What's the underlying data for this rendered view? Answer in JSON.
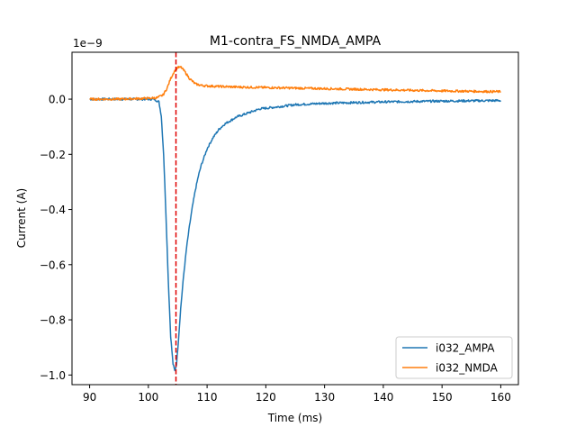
{
  "chart_data": {
    "type": "line",
    "title": "M1-contra_FS_NMDA_AMPA",
    "xlabel": "Time (ms)",
    "ylabel": "Current (A)",
    "y_offset_label": "1e−9",
    "xlim": [
      87,
      163
    ],
    "ylim": [
      -1.035,
      0.17
    ],
    "x_ticks": [
      90,
      100,
      110,
      120,
      130,
      140,
      150,
      160
    ],
    "x_tick_labels": [
      "90",
      "100",
      "110",
      "120",
      "130",
      "140",
      "150",
      "160"
    ],
    "y_ticks": [
      0.0,
      -0.2,
      -0.4,
      -0.6,
      -0.8,
      -1.0
    ],
    "y_tick_labels": [
      "0.0",
      "−0.2",
      "−0.4",
      "−0.6",
      "−0.8",
      "−1.0"
    ],
    "legend_position": "lower-right",
    "vline": {
      "x": 104.7,
      "color": "#e00000"
    },
    "series": [
      {
        "name": "i032_AMPA",
        "color": "#1f77b4",
        "x": [
          90,
          95,
          100,
          101,
          101.8,
          102.2,
          102.6,
          103.0,
          103.4,
          103.8,
          104.2,
          104.5,
          104.8,
          105.1,
          105.5,
          106.0,
          106.5,
          107.0,
          107.5,
          108.0,
          108.5,
          109.0,
          110.0,
          111.0,
          112.0,
          113.0,
          115.0,
          117.0,
          119.0,
          122.0,
          125.0,
          130.0,
          140.0,
          150.0,
          160.0
        ],
        "y": [
          0.0,
          0.0,
          0.0,
          0.0,
          -0.01,
          -0.06,
          -0.2,
          -0.42,
          -0.66,
          -0.86,
          -0.96,
          -0.985,
          -0.96,
          -0.88,
          -0.76,
          -0.64,
          -0.54,
          -0.46,
          -0.39,
          -0.33,
          -0.28,
          -0.24,
          -0.18,
          -0.14,
          -0.11,
          -0.09,
          -0.065,
          -0.05,
          -0.035,
          -0.028,
          -0.02,
          -0.015,
          -0.01,
          -0.007,
          -0.005
        ]
      },
      {
        "name": "i032_NMDA",
        "color": "#ff7f0e",
        "x": [
          90,
          95,
          100,
          101.5,
          102.5,
          103.2,
          103.8,
          104.4,
          105.0,
          105.6,
          106.2,
          107.0,
          108.0,
          109.0,
          110.0,
          112.0,
          115.0,
          120.0,
          130.0,
          140.0,
          150.0,
          160.0
        ],
        "y": [
          0.0,
          0.0,
          0.003,
          0.005,
          0.015,
          0.04,
          0.075,
          0.1,
          0.115,
          0.115,
          0.1,
          0.075,
          0.055,
          0.05,
          0.048,
          0.046,
          0.044,
          0.042,
          0.038,
          0.034,
          0.03,
          0.027
        ]
      }
    ]
  }
}
